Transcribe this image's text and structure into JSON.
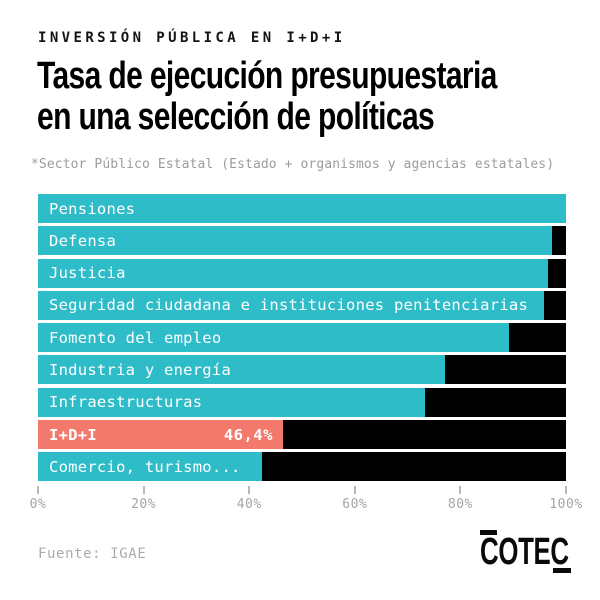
{
  "header": {
    "kicker": "INVERSIÓN PÚBLICA EN I+D+I",
    "title_line1": "Tasa de ejecución presupuestaria",
    "title_line2": "en una selección de políticas",
    "subtitle": "*Sector Público Estatal (Estado + organismos y agencias estatales)"
  },
  "chart_data": {
    "type": "bar",
    "orientation": "horizontal",
    "title": "Tasa de ejecución presupuestaria en una selección de políticas",
    "unit": "%",
    "xlim": [
      0,
      100
    ],
    "x_tick_labels": [
      "0%",
      "20%",
      "40%",
      "60%",
      "80%",
      "100%"
    ],
    "grid": false,
    "legend": "none",
    "categories": [
      "Pensiones",
      "Defensa",
      "Justicia",
      "Seguridad ciudadana e instituciones penitenciarias",
      "Fomento del empleo",
      "Industria y energía",
      "Infraestructuras",
      "I+D+I",
      "Comercio, turismo..."
    ],
    "values": [
      100,
      97.4,
      96.5,
      95.8,
      89.2,
      77.0,
      73.3,
      46.4,
      42.4
    ],
    "highlight_index": 7,
    "highlight_value_label": "46,4%",
    "colors": {
      "bar": "#2fbcc9",
      "highlight": "#f2796c",
      "track": "#000000",
      "bar_label": "#ffffff"
    }
  },
  "footer": {
    "source": "Fuente: IGAE",
    "logo_text": "COTEC"
  }
}
